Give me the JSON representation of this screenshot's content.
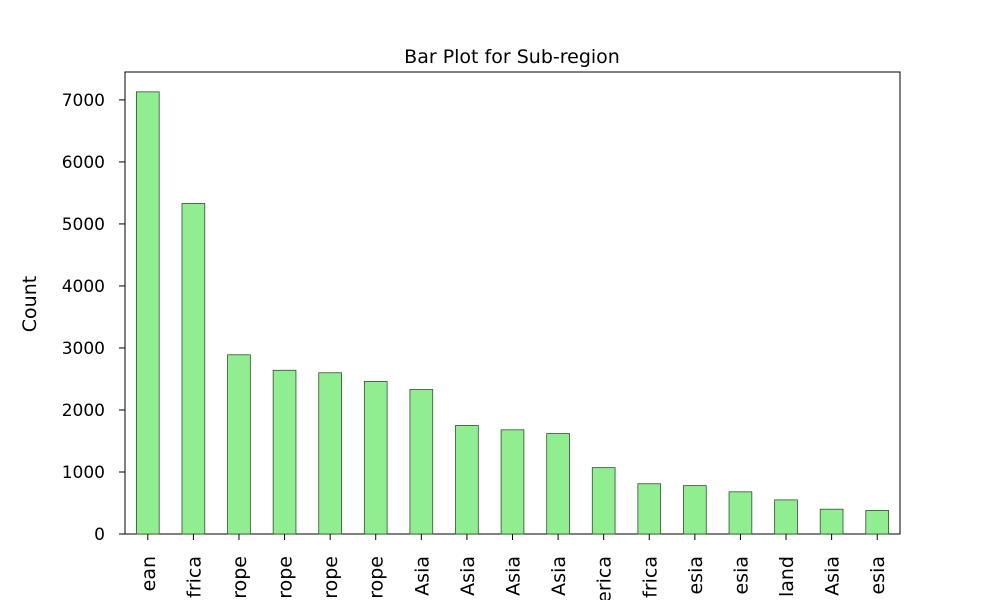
{
  "chart_data": {
    "type": "bar",
    "title": "Bar Plot for Sub-region",
    "xlabel": "",
    "ylabel": "Count",
    "ylim": [
      0,
      7450
    ],
    "yticks": [
      0,
      1000,
      2000,
      3000,
      4000,
      5000,
      6000,
      7000
    ],
    "categories": [
      "ean",
      "frica",
      "rope",
      "rope",
      "rope",
      "rope",
      "Asia",
      "Asia",
      "Asia",
      "Asia",
      "erica",
      "frica",
      "esia",
      "esia",
      "land",
      "Asia",
      "esia"
    ],
    "values": [
      7130,
      5330,
      2890,
      2640,
      2600,
      2460,
      2330,
      1750,
      1680,
      1620,
      1070,
      810,
      780,
      680,
      550,
      400,
      380
    ],
    "grid": false,
    "legend": "none",
    "colors": {
      "bar_fill": "#90EE90",
      "bar_edge": "#2f4f2f",
      "axis": "#000000"
    }
  }
}
